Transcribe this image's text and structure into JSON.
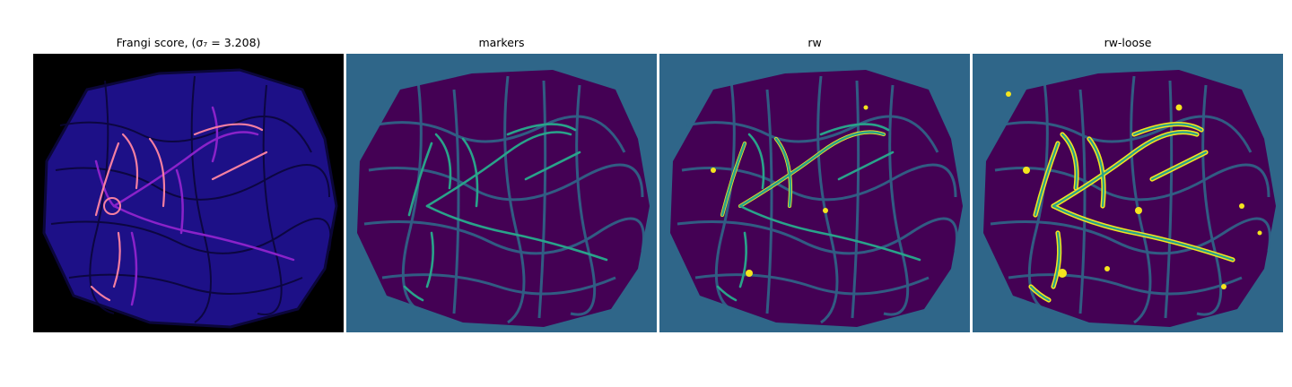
{
  "panels": [
    {
      "title": "Frangi score, (σ₇ = 3.208)"
    },
    {
      "title": "markers"
    },
    {
      "title": "rw"
    },
    {
      "title": "rw-loose"
    }
  ],
  "colors": {
    "magma_bg": "#000000",
    "magma_low": "#1d1087",
    "magma_mid": "#8a22c9",
    "magma_high": "#f57fa1",
    "viridis_bg": "#2f6689",
    "viridis_dark": "#440154",
    "viridis_teal": "#29a38a",
    "viridis_yellow": "#f4e51e"
  }
}
